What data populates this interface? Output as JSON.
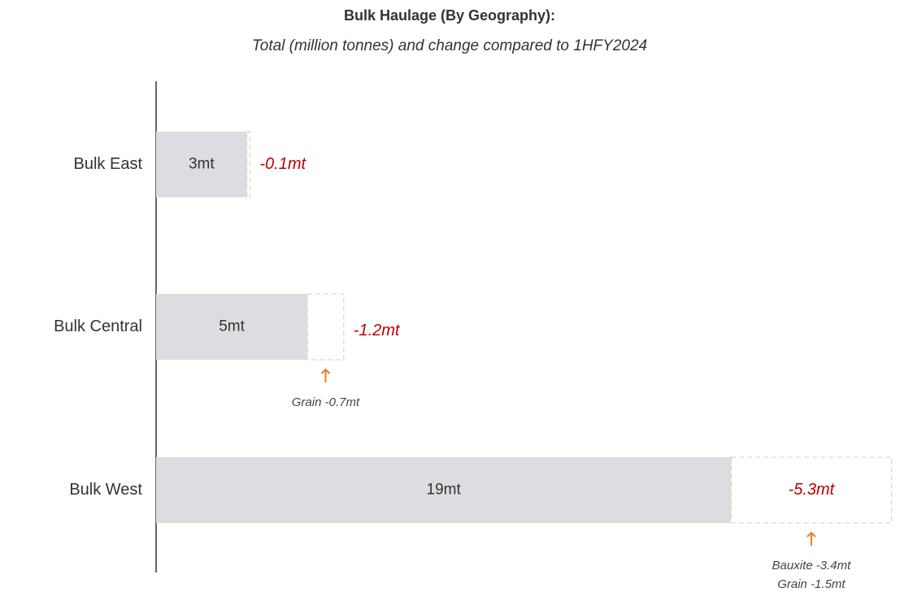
{
  "chart_data": {
    "type": "bar",
    "title": "Bulk Haulage (By Geography):",
    "subtitle": "Total (million tonnes) and change compared to 1HFY2024",
    "categories": [
      "Bulk East",
      "Bulk Central",
      "Bulk West"
    ],
    "values": [
      3,
      5,
      19
    ],
    "value_labels": [
      "3mt",
      "5mt",
      "19mt"
    ],
    "changes": [
      -0.1,
      -1.2,
      -5.3
    ],
    "change_labels": [
      "-0.1mt",
      "-1.2mt",
      "-5.3mt"
    ],
    "annotations": [
      [],
      [
        "Grain -0.7mt"
      ],
      [
        "Bauxite -3.4mt",
        "Grain -1.5mt"
      ]
    ],
    "color": "#dcdde0",
    "change_color": "#c00000",
    "arrow_color": "#f07a20",
    "xlim": [
      0,
      24.5
    ]
  }
}
